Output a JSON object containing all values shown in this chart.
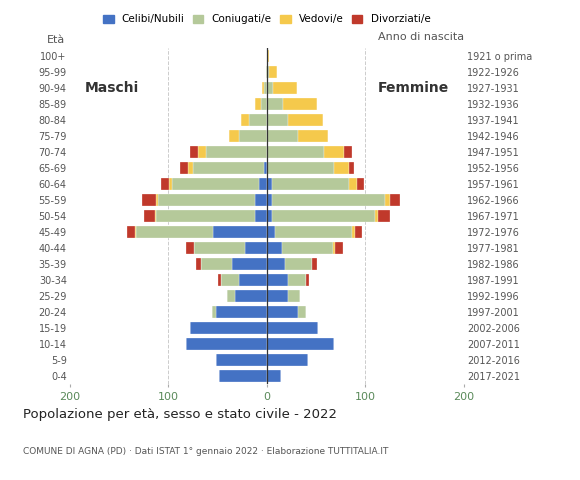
{
  "age_groups": [
    "0-4",
    "5-9",
    "10-14",
    "15-19",
    "20-24",
    "25-29",
    "30-34",
    "35-39",
    "40-44",
    "45-49",
    "50-54",
    "55-59",
    "60-64",
    "65-69",
    "70-74",
    "75-79",
    "80-84",
    "85-89",
    "90-94",
    "95-99",
    "100+"
  ],
  "birth_years": [
    "2017-2021",
    "2012-2016",
    "2007-2011",
    "2002-2006",
    "1997-2001",
    "1992-1996",
    "1987-1991",
    "1982-1986",
    "1977-1981",
    "1972-1976",
    "1967-1971",
    "1962-1966",
    "1957-1961",
    "1952-1956",
    "1947-1951",
    "1942-1946",
    "1937-1941",
    "1932-1936",
    "1927-1931",
    "1922-1926",
    "1921 o prima"
  ],
  "males_celibe": [
    48,
    52,
    82,
    78,
    52,
    32,
    28,
    35,
    22,
    55,
    12,
    12,
    8,
    3,
    0,
    0,
    0,
    0,
    0,
    0,
    0
  ],
  "males_coniugato": [
    0,
    0,
    0,
    0,
    4,
    8,
    18,
    32,
    52,
    78,
    100,
    98,
    88,
    72,
    62,
    28,
    18,
    6,
    3,
    1,
    0
  ],
  "males_vedovo": [
    0,
    0,
    0,
    0,
    0,
    0,
    0,
    0,
    0,
    1,
    1,
    2,
    3,
    5,
    8,
    10,
    8,
    6,
    2,
    0,
    0
  ],
  "males_divorziato": [
    0,
    0,
    0,
    0,
    0,
    0,
    3,
    5,
    8,
    8,
    12,
    15,
    8,
    8,
    8,
    0,
    0,
    0,
    0,
    0,
    0
  ],
  "females_nubile": [
    14,
    42,
    68,
    52,
    32,
    22,
    22,
    18,
    15,
    8,
    5,
    5,
    5,
    0,
    0,
    0,
    0,
    0,
    0,
    0,
    0
  ],
  "females_coniugata": [
    0,
    0,
    0,
    0,
    8,
    12,
    18,
    28,
    52,
    78,
    105,
    115,
    78,
    68,
    58,
    32,
    22,
    16,
    6,
    2,
    0
  ],
  "females_vedova": [
    0,
    0,
    0,
    0,
    0,
    0,
    0,
    0,
    2,
    3,
    3,
    5,
    8,
    15,
    20,
    30,
    35,
    35,
    25,
    8,
    2
  ],
  "females_divorziata": [
    0,
    0,
    0,
    0,
    0,
    0,
    3,
    5,
    8,
    8,
    12,
    10,
    8,
    5,
    8,
    0,
    0,
    0,
    0,
    0,
    0
  ],
  "color_celibe": "#4472c4",
  "color_coniugato": "#b5c99a",
  "color_vedovo": "#f5c94c",
  "color_divorziato": "#c0392b",
  "legend_labels": [
    "Celibi/Nubili",
    "Coniugati/e",
    "Vedovi/e",
    "Divorziati/e"
  ],
  "title": "Popolazione per età, sesso e stato civile - 2022",
  "subtitle": "COMUNE DI AGNA (PD) · Dati ISTAT 1° gennaio 2022 · Elaborazione TUTTITALIA.IT",
  "label_eta": "Età",
  "label_anno": "Anno di nascita",
  "label_maschi": "Maschi",
  "label_femmine": "Femmine",
  "xlim": 200,
  "bg_color": "#ffffff",
  "grid_dashed_color": "#cccccc",
  "tick_color": "#5a8a5a",
  "text_color": "#555555"
}
